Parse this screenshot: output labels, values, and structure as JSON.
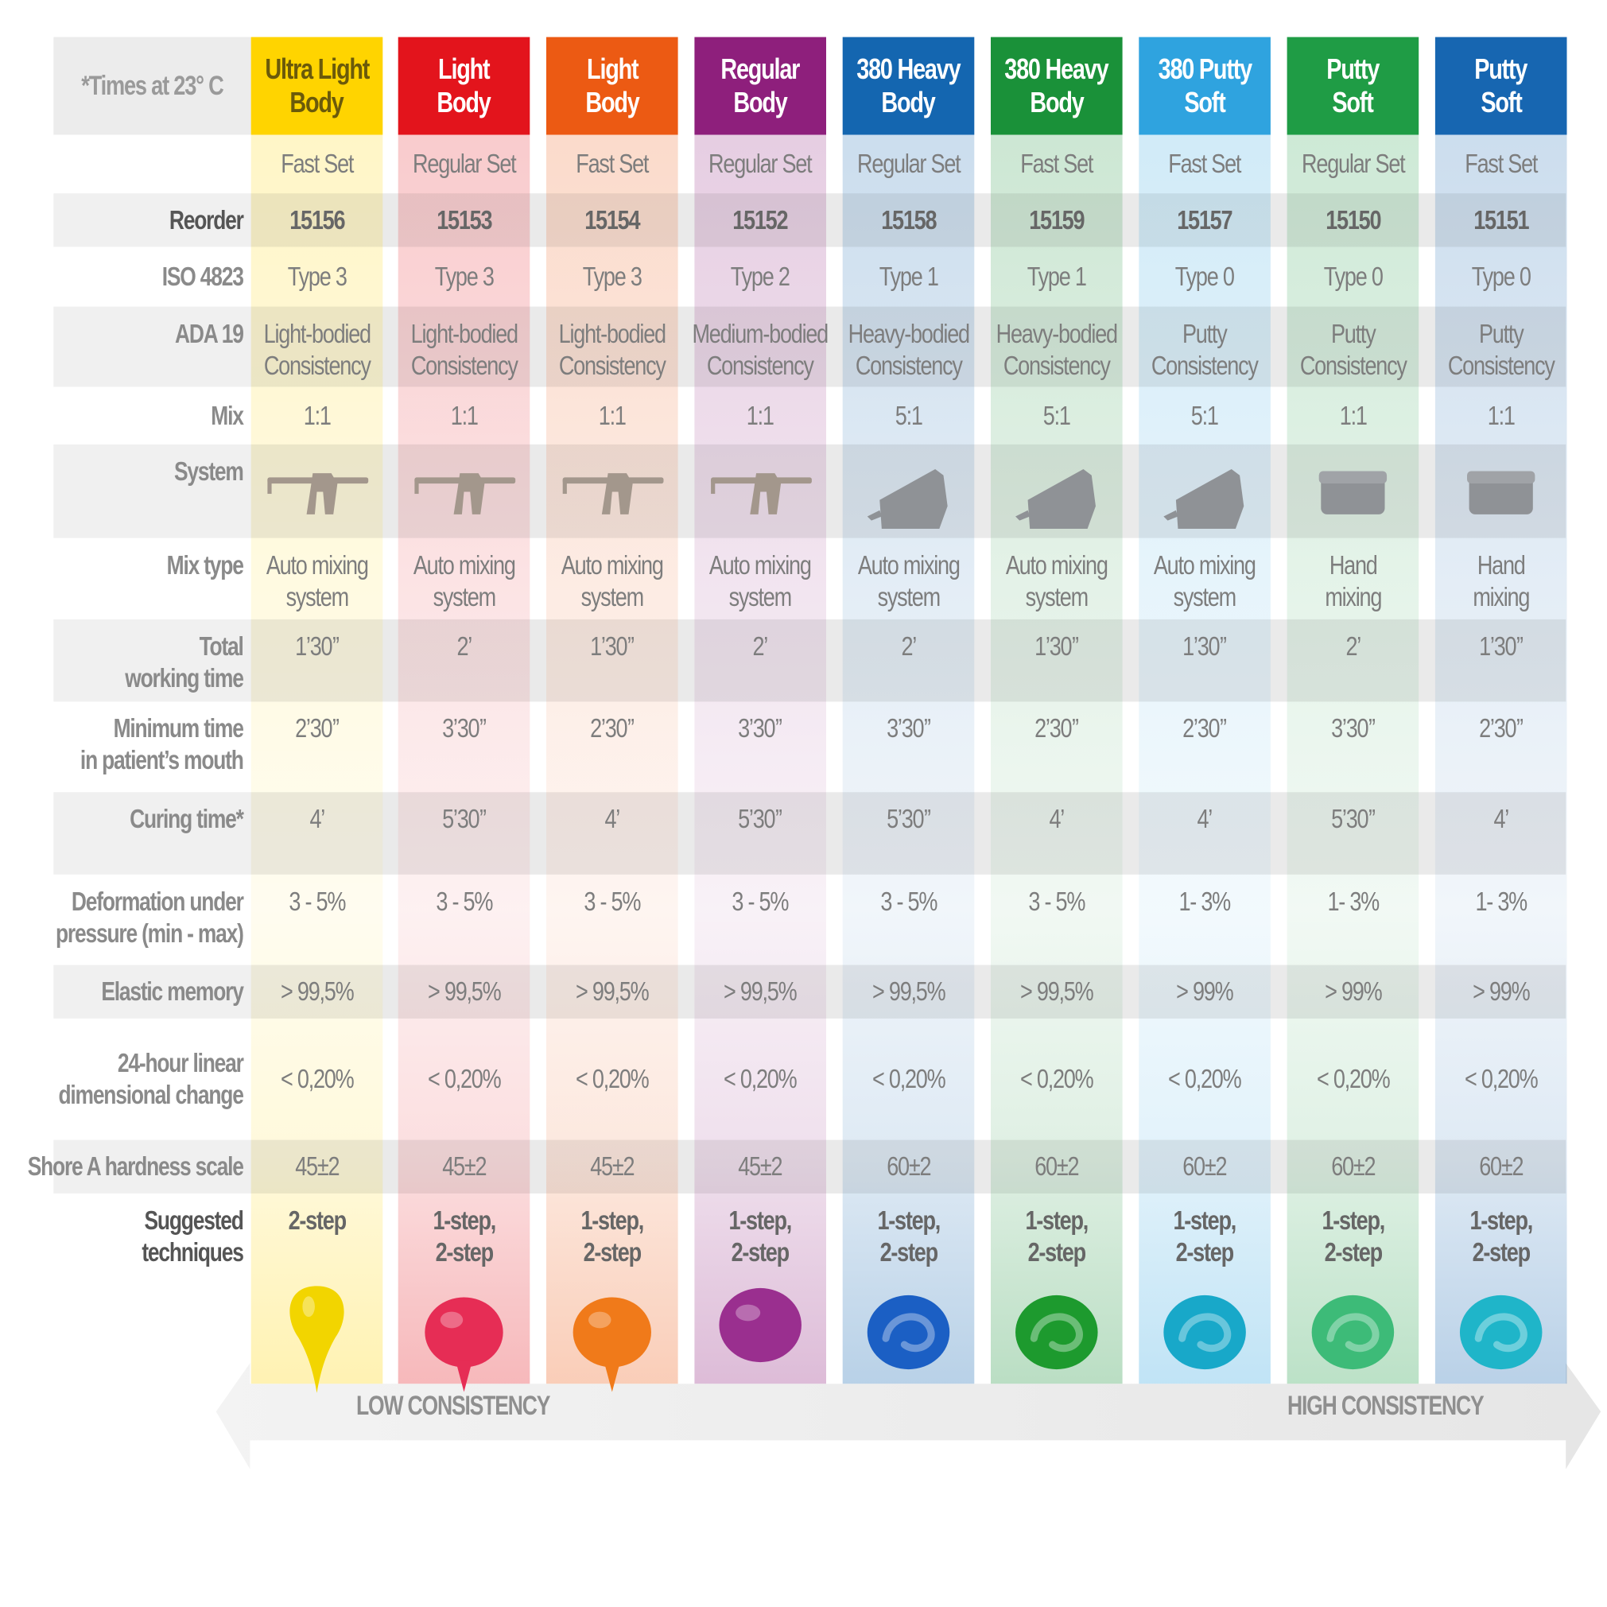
{
  "header": {
    "note": "*Times at 23° C",
    "columns": [
      {
        "name": [
          "Ultra Light",
          "Body"
        ],
        "color": "#ffd400",
        "text_color": "#6b5a0a",
        "set": "Fast Set",
        "reorder": "15156",
        "iso": "Type 3",
        "ada": [
          "Light-bodied",
          "Consistency"
        ],
        "mix": "1:1",
        "system_icon": "dispenser-gun-icon",
        "mix_type": [
          "Auto mixing",
          "system"
        ],
        "working": "1’30’’",
        "min_mouth": "2’30’’",
        "curing": "4’",
        "deformation": "3 - 5%",
        "elastic": "> 99,5%",
        "linear": "< 0,20%",
        "shore": "45±2",
        "techniques": [
          "2-step"
        ],
        "sample_icon": "yellow-drop-icon",
        "sample_color": "#f2d500"
      },
      {
        "name": [
          "Light",
          "Body"
        ],
        "color": "#e3141c",
        "text_color": "#ffffff",
        "set": "Regular Set",
        "reorder": "15153",
        "iso": "Type 3",
        "ada": [
          "Light-bodied",
          "Consistency"
        ],
        "mix": "1:1",
        "system_icon": "dispenser-gun-icon",
        "mix_type": [
          "Auto mixing",
          "system"
        ],
        "working": "2’",
        "min_mouth": "3’30’’",
        "curing": "5’30’’",
        "deformation": "3 - 5%",
        "elastic": "> 99,5%",
        "linear": "< 0,20%",
        "shore": "45±2",
        "techniques": [
          "1-step,",
          "2-step"
        ],
        "sample_icon": "red-drop-icon",
        "sample_color": "#e62d55"
      },
      {
        "name": [
          "Light",
          "Body"
        ],
        "color": "#ec5a13",
        "text_color": "#ffffff",
        "set": "Fast Set",
        "reorder": "15154",
        "iso": "Type 3",
        "ada": [
          "Light-bodied",
          "Consistency"
        ],
        "mix": "1:1",
        "system_icon": "dispenser-gun-icon",
        "mix_type": [
          "Auto mixing",
          "system"
        ],
        "working": "1’30’’",
        "min_mouth": "2’30’’",
        "curing": "4’",
        "deformation": "3 - 5%",
        "elastic": "> 99,5%",
        "linear": "< 0,20%",
        "shore": "45±2",
        "techniques": [
          "1-step,",
          "2-step"
        ],
        "sample_icon": "orange-drop-icon",
        "sample_color": "#f07a1a"
      },
      {
        "name": [
          "Regular",
          "Body"
        ],
        "color": "#8e1f7c",
        "text_color": "#ffffff",
        "set": "Regular Set",
        "reorder": "15152",
        "iso": "Type 2",
        "ada": [
          "Medium-bodied",
          "Consistency"
        ],
        "mix": "1:1",
        "system_icon": "dispenser-gun-icon",
        "mix_type": [
          "Auto mixing",
          "system"
        ],
        "working": "2’",
        "min_mouth": "3’30’’",
        "curing": "5’30’’",
        "deformation": "3 - 5%",
        "elastic": "> 99,5%",
        "linear": "< 0,20%",
        "shore": "45±2",
        "techniques": [
          "1-step,",
          "2-step"
        ],
        "sample_icon": "purple-blob-icon",
        "sample_color": "#9a2f8f"
      },
      {
        "name": [
          "380 Heavy",
          "Body"
        ],
        "color": "#1466b0",
        "text_color": "#ffffff",
        "set": "Regular Set",
        "reorder": "15158",
        "iso": "Type 1",
        "ada": [
          "Heavy-bodied",
          "Consistency"
        ],
        "mix": "5:1",
        "system_icon": "mixing-machine-icon",
        "mix_type": [
          "Auto mixing",
          "system"
        ],
        "working": "2’",
        "min_mouth": "3’30’’",
        "curing": "5’30’’",
        "deformation": "3 - 5%",
        "elastic": "> 99,5%",
        "linear": "< 0,20%",
        "shore": "60±2",
        "techniques": [
          "1-step,",
          "2-step"
        ],
        "sample_icon": "blue-swirl-icon",
        "sample_color": "#1b5fc4"
      },
      {
        "name": [
          "380 Heavy",
          "Body"
        ],
        "color": "#1a9139",
        "text_color": "#ffffff",
        "set": "Fast Set",
        "reorder": "15159",
        "iso": "Type 1",
        "ada": [
          "Heavy-bodied",
          "Consistency"
        ],
        "mix": "5:1",
        "system_icon": "mixing-machine-icon",
        "mix_type": [
          "Auto mixing",
          "system"
        ],
        "working": "1’30’’",
        "min_mouth": "2’30’’",
        "curing": "4’",
        "deformation": "3 - 5%",
        "elastic": "> 99,5%",
        "linear": "< 0,20%",
        "shore": "60±2",
        "techniques": [
          "1-step,",
          "2-step"
        ],
        "sample_icon": "green-swirl-icon",
        "sample_color": "#1d9a2e"
      },
      {
        "name": [
          "380 Putty",
          "Soft"
        ],
        "color": "#2fa3df",
        "text_color": "#ffffff",
        "set": "Fast Set",
        "reorder": "15157",
        "iso": "Type 0",
        "ada": [
          "Putty",
          "Consistency"
        ],
        "mix": "5:1",
        "system_icon": "mixing-machine-icon",
        "mix_type": [
          "Auto mixing",
          "system"
        ],
        "working": "1’30’’",
        "min_mouth": "2’30’’",
        "curing": "4’",
        "deformation": "1- 3%",
        "elastic": "> 99%",
        "linear": "< 0,20%",
        "shore": "60±2",
        "techniques": [
          "1-step,",
          "2-step"
        ],
        "sample_icon": "cyan-swirl-icon",
        "sample_color": "#18a8c9"
      },
      {
        "name": [
          "Putty",
          "Soft"
        ],
        "color": "#1f9c45",
        "text_color": "#ffffff",
        "set": "Regular Set",
        "reorder": "15150",
        "iso": "Type 0",
        "ada": [
          "Putty",
          "Consistency"
        ],
        "mix": "1:1",
        "system_icon": "putty-jar-icon",
        "mix_type": [
          "Hand",
          "mixing"
        ],
        "working": "2’",
        "min_mouth": "3’30’’",
        "curing": "5’30’’",
        "deformation": "1- 3%",
        "elastic": "> 99%",
        "linear": "< 0,20%",
        "shore": "60±2",
        "techniques": [
          "1-step,",
          "2-step"
        ],
        "sample_icon": "mint-putty-icon",
        "sample_color": "#3dbb78"
      },
      {
        "name": [
          "Putty",
          "Soft"
        ],
        "color": "#1766b1",
        "text_color": "#ffffff",
        "set": "Fast Set",
        "reorder": "15151",
        "iso": "Type 0",
        "ada": [
          "Putty",
          "Consistency"
        ],
        "mix": "1:1",
        "system_icon": "putty-jar-icon",
        "mix_type": [
          "Hand",
          "mixing"
        ],
        "working": "1’30’’",
        "min_mouth": "2’30’’",
        "curing": "4’",
        "deformation": "1- 3%",
        "elastic": "> 99%",
        "linear": "< 0,20%",
        "shore": "60±2",
        "techniques": [
          "1-step,",
          "2-step"
        ],
        "sample_icon": "turquoise-putty-icon",
        "sample_color": "#1fb5c9"
      }
    ]
  },
  "labels": {
    "reorder": [
      "Reorder"
    ],
    "iso": [
      "ISO 4823"
    ],
    "ada": [
      "ADA 19"
    ],
    "mix": [
      "Mix"
    ],
    "system": [
      "System"
    ],
    "mix_type": [
      "Mix type"
    ],
    "working": [
      "Total",
      "working time"
    ],
    "min_mouth": [
      "Minimum time",
      "in patient’s mouth"
    ],
    "curing": [
      "Curing time*"
    ],
    "deformation": [
      "Deformation under",
      "pressure (min - max)"
    ],
    "elastic": [
      "Elastic memory"
    ],
    "linear": [
      "24-hour linear",
      "dimensional change"
    ],
    "shore": [
      "Shore A hardness scale"
    ],
    "techniques": [
      "Suggested",
      "techniques"
    ]
  },
  "consistency": {
    "low": "LOW CONSISTENCY",
    "high": "HIGH CONSISTENCY"
  }
}
